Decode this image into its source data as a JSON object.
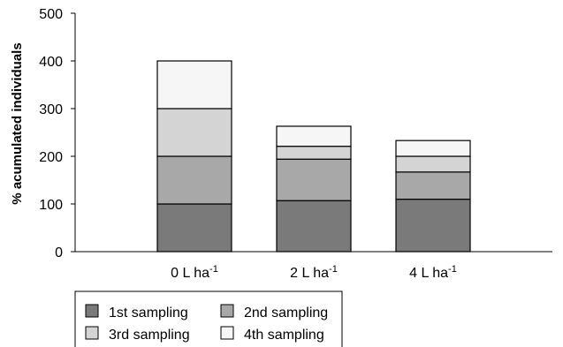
{
  "chart_data": {
    "type": "bar",
    "stacked": true,
    "ylabel": "% acumulated individuals",
    "xlabel": "",
    "ylim": [
      0,
      500
    ],
    "yticks": [
      0,
      100,
      200,
      300,
      400,
      500
    ],
    "grid": false,
    "legend_placement": "bottom-left",
    "categories": [
      {
        "main": "0 L ha",
        "sup": "-1"
      },
      {
        "main": "2 L ha",
        "sup": "-1"
      },
      {
        "main": "4 L ha",
        "sup": "-1"
      }
    ],
    "series": [
      {
        "name": "1st sampling",
        "color": "#7a7a7a",
        "values": [
          100,
          107,
          110
        ]
      },
      {
        "name": "2nd sampling",
        "color": "#a8a8a8",
        "values": [
          100,
          87,
          57
        ]
      },
      {
        "name": "3rd sampling",
        "color": "#d4d4d4",
        "values": [
          100,
          27,
          33
        ]
      },
      {
        "name": "4th sampling",
        "color": "#f6f6f6",
        "values": [
          100,
          42,
          33
        ]
      }
    ]
  }
}
